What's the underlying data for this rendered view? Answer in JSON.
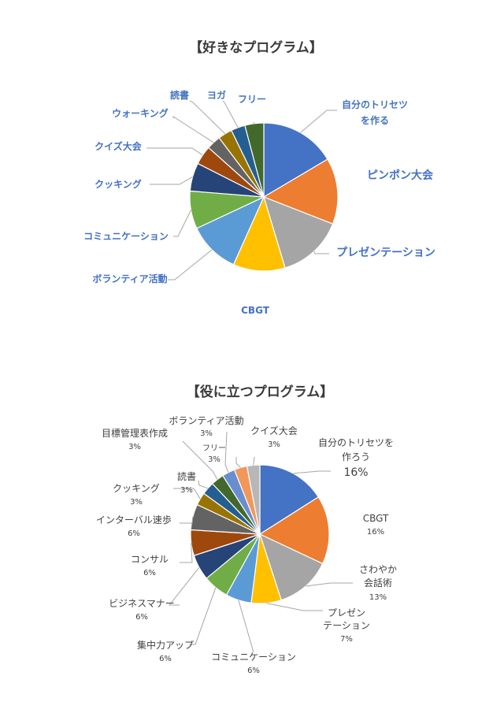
{
  "chart_data": [
    {
      "type": "pie",
      "title": "【好きなプログラム】",
      "slices": [
        {
          "label": "自分のトリセツ\nを作る",
          "value": 16,
          "color": "#4472c4"
        },
        {
          "label": "ピンポン大会",
          "value": 14,
          "color": "#ed7d31"
        },
        {
          "label": "プレゼンテーション",
          "value": 14,
          "color": "#a5a5a5"
        },
        {
          "label": "CBGT",
          "value": 11,
          "color": "#ffc000"
        },
        {
          "label": "ボランティア活動",
          "value": 11,
          "color": "#5b9bd5"
        },
        {
          "label": "コミュニケーション",
          "value": 8,
          "color": "#70ad47"
        },
        {
          "label": "クッキング",
          "value": 6,
          "color": "#264478"
        },
        {
          "label": "クイズ大会",
          "value": 4,
          "color": "#9e480e"
        },
        {
          "label": "ウォーキング",
          "value": 3,
          "color": "#636363"
        },
        {
          "label": "読書",
          "value": 3,
          "color": "#997300"
        },
        {
          "label": "ヨガ",
          "value": 3,
          "color": "#255e91"
        },
        {
          "label": "フリー",
          "value": 4,
          "color": "#43682b"
        }
      ]
    },
    {
      "type": "pie",
      "title": "【役に立つプログラム】",
      "slices": [
        {
          "label": "自分のトリセツを\n作ろう",
          "pct_label": "16%",
          "value": 16,
          "color": "#4472c4"
        },
        {
          "label": "CBGT",
          "pct_label": "16%",
          "value": 16,
          "color": "#ed7d31"
        },
        {
          "label": "さわやか\n会話術",
          "pct_label": "13%",
          "value": 13,
          "color": "#a5a5a5"
        },
        {
          "label": "プレゼン\nテーション",
          "pct_label": "7%",
          "value": 7,
          "color": "#ffc000"
        },
        {
          "label": "コミュニケーション",
          "pct_label": "6%",
          "value": 6,
          "color": "#5b9bd5"
        },
        {
          "label": "集中力アップ",
          "pct_label": "6%",
          "value": 6,
          "color": "#70ad47"
        },
        {
          "label": "ビジネスマナー",
          "pct_label": "6%",
          "value": 6,
          "color": "#264478"
        },
        {
          "label": "コンサル",
          "pct_label": "6%",
          "value": 6,
          "color": "#9e480e"
        },
        {
          "label": "インターバル速歩",
          "pct_label": "6%",
          "value": 6,
          "color": "#636363"
        },
        {
          "label": "クッキング",
          "pct_label": "3%",
          "value": 3,
          "color": "#997300"
        },
        {
          "label": "読書",
          "pct_label": "3%",
          "value": 3,
          "color": "#255e91"
        },
        {
          "label": "目標管理表作成",
          "pct_label": "3%",
          "value": 3,
          "color": "#43682b"
        },
        {
          "label": "ボランティア活動",
          "pct_label": "3%",
          "value": 3,
          "color": "#698ed0"
        },
        {
          "label": "フリー",
          "pct_label": "3%",
          "value": 3,
          "color": "#f1975a"
        },
        {
          "label": "クイズ大会",
          "pct_label": "3%",
          "value": 3,
          "color": "#b7b7b7"
        }
      ]
    }
  ]
}
